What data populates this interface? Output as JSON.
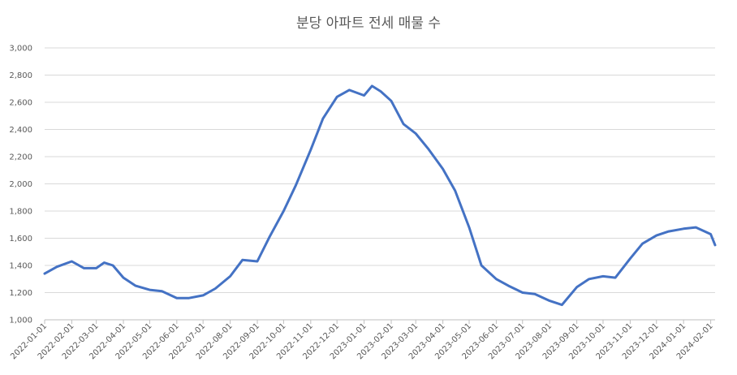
{
  "chart_data": {
    "type": "line",
    "title": "분당 아파트 전세 매물 수",
    "xlabel": "",
    "ylabel": "",
    "ylim": [
      1000,
      3000
    ],
    "y_ticks": [
      "1,000",
      "1,200",
      "1,400",
      "1,600",
      "1,800",
      "2,000",
      "2,200",
      "2,400",
      "2,600",
      "2,800",
      "3,000"
    ],
    "x_ticks": [
      "2022-01-01",
      "2022-02-01",
      "2022-03-01",
      "2022-04-01",
      "2022-05-01",
      "2022-06-01",
      "2022-07-01",
      "2022-08-01",
      "2022-09-01",
      "2022-10-01",
      "2022-11-01",
      "2022-12-01",
      "2023-01-01",
      "2023-02-01",
      "2023-03-01",
      "2023-04-01",
      "2023-05-01",
      "2023-06-01",
      "2023-07-01",
      "2023-08-01",
      "2023-09-01",
      "2023-10-01",
      "2023-11-01",
      "2023-12-01",
      "2024-01-01",
      "2024-02-01"
    ],
    "grid": true,
    "legend": "none",
    "line_color": "#4472C4",
    "series": [
      {
        "x": [
          "2022-01-01",
          "2022-01-15",
          "2022-02-01",
          "2022-02-15",
          "2022-03-01",
          "2022-03-10",
          "2022-03-20",
          "2022-04-01",
          "2022-04-15",
          "2022-05-01",
          "2022-05-15",
          "2022-06-01",
          "2022-06-15",
          "2022-07-01",
          "2022-07-15",
          "2022-08-01",
          "2022-08-15",
          "2022-09-01",
          "2022-09-15",
          "2022-10-01",
          "2022-10-15",
          "2022-11-01",
          "2022-11-15",
          "2022-12-01",
          "2022-12-15",
          "2023-01-01",
          "2023-01-10",
          "2023-01-20",
          "2023-02-01",
          "2023-02-15",
          "2023-03-01",
          "2023-03-15",
          "2023-04-01",
          "2023-04-15",
          "2023-05-01",
          "2023-05-15",
          "2023-06-01",
          "2023-06-15",
          "2023-07-01",
          "2023-07-15",
          "2023-08-01",
          "2023-08-15",
          "2023-09-01",
          "2023-09-15",
          "2023-10-01",
          "2023-10-15",
          "2023-11-01",
          "2023-11-15",
          "2023-12-01",
          "2023-12-15",
          "2024-01-01",
          "2024-01-15",
          "2024-02-01",
          "2024-02-06"
        ],
        "values": [
          1340,
          1390,
          1430,
          1380,
          1380,
          1420,
          1400,
          1310,
          1250,
          1220,
          1210,
          1160,
          1160,
          1180,
          1230,
          1320,
          1440,
          1430,
          1610,
          1800,
          1990,
          2250,
          2480,
          2640,
          2690,
          2650,
          2720,
          2680,
          2610,
          2440,
          2370,
          2260,
          2110,
          1950,
          1680,
          1400,
          1300,
          1250,
          1200,
          1190,
          1140,
          1110,
          1240,
          1300,
          1320,
          1310,
          1450,
          1560,
          1620,
          1650,
          1670,
          1680,
          1630,
          1550
        ]
      }
    ]
  }
}
